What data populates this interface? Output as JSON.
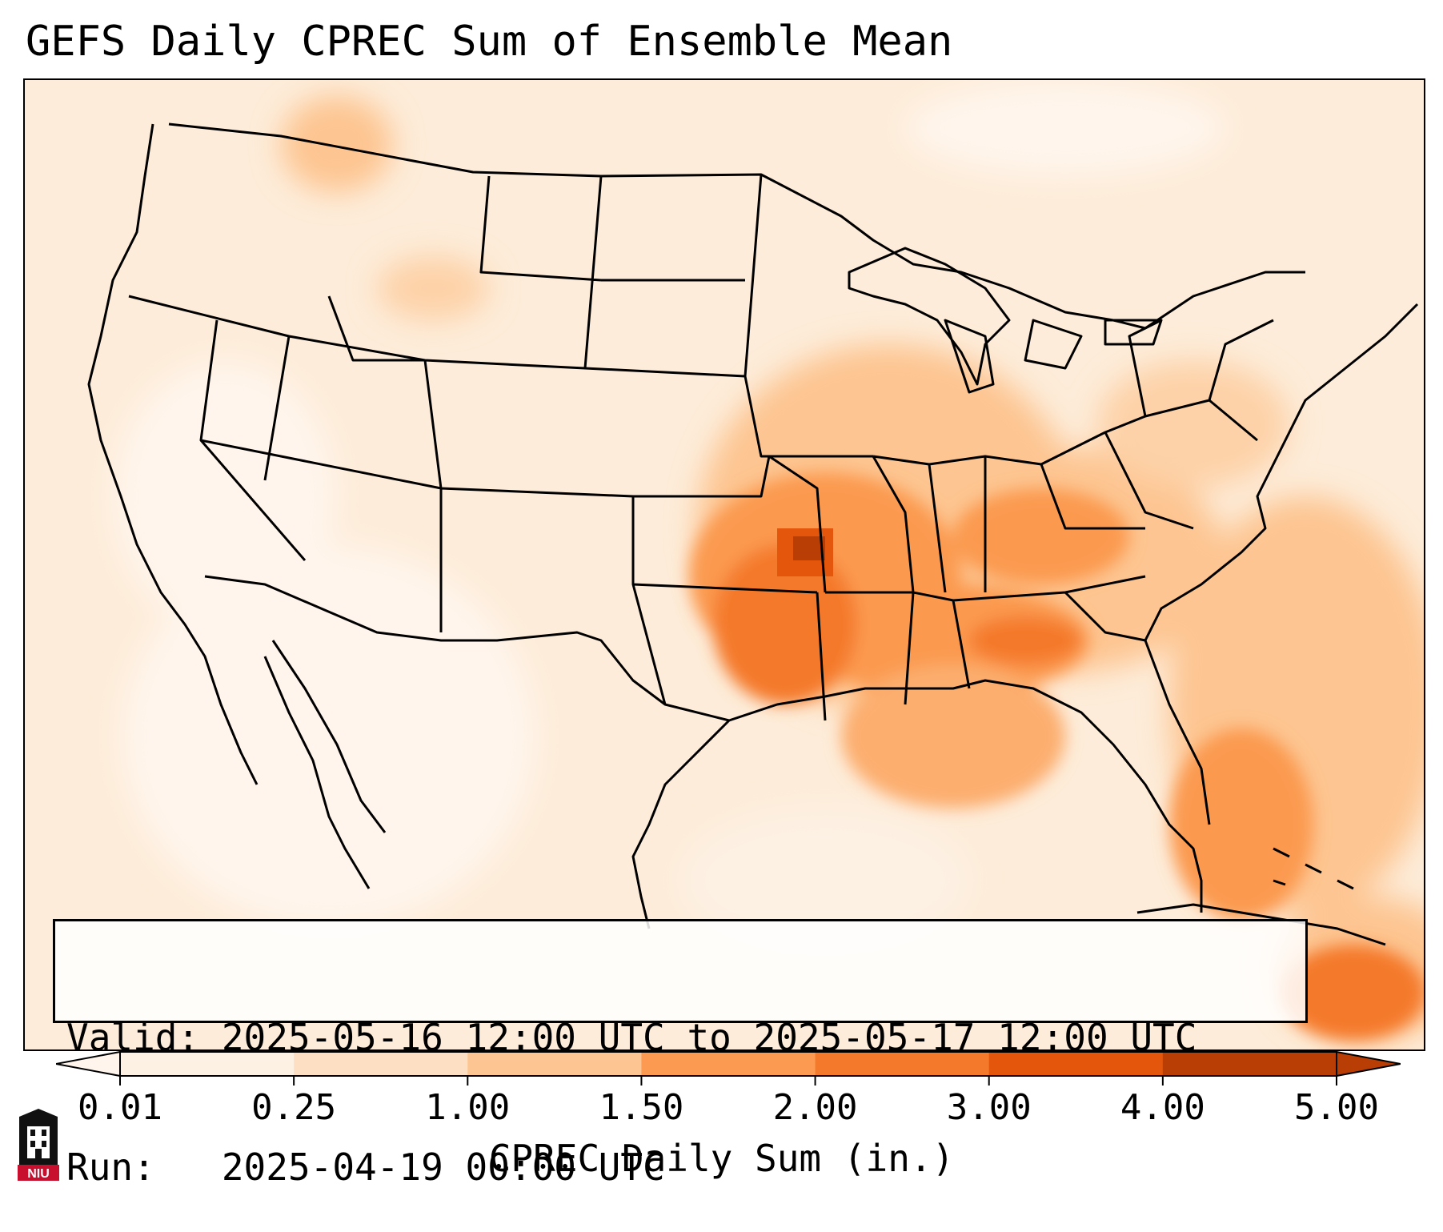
{
  "title": "GEFS Daily CPREC Sum of Ensemble Mean",
  "info": {
    "valid_line": "Valid: 2025-05-16 12:00 UTC to 2025-05-17 12:00 UTC",
    "run_line": "Run:   2025-04-19 00:00 UTC"
  },
  "colorbar": {
    "label": "CPREC Daily Sum (in.)",
    "ticks": [
      "0.01",
      "0.25",
      "1.00",
      "1.50",
      "2.00",
      "3.00",
      "4.00",
      "5.00"
    ],
    "colors": [
      "#fdf1e4",
      "#fde0c4",
      "#fdc591",
      "#fb9a50",
      "#f4792a",
      "#e3560c",
      "#b93e05"
    ],
    "extend": "both"
  },
  "logo": {
    "text": "NIU"
  }
}
